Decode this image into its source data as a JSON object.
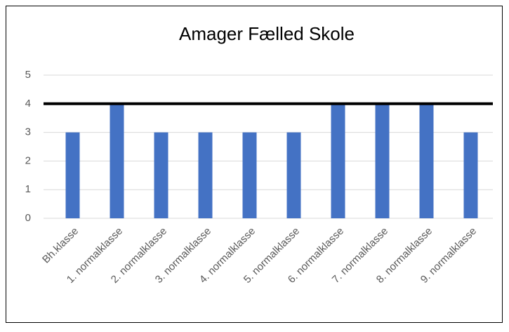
{
  "chart_data": {
    "type": "bar",
    "title": "Amager Fælled Skole",
    "categories": [
      "Bh.klasse",
      "1. normalklasse",
      "2. normalklasse",
      "3. normalklasse",
      "4. normalklasse",
      "5. normalklasse",
      "6. normalklasse",
      "7. normalklasse",
      "8. normalklasse",
      "9. normalklasse"
    ],
    "values": [
      3,
      4,
      3,
      3,
      3,
      3,
      4,
      4,
      4,
      3
    ],
    "color": "#4472c4",
    "ylim": [
      0,
      5
    ],
    "yticks": [
      0,
      1,
      2,
      3,
      4,
      5
    ],
    "grid": true,
    "reference_line": {
      "value": 4,
      "color": "#000000"
    }
  }
}
